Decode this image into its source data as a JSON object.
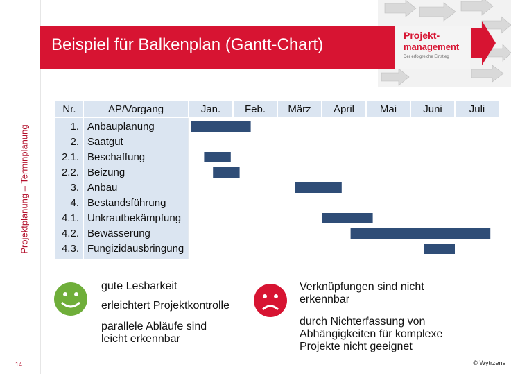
{
  "slide": {
    "title": "Beispiel für Balkenplan (Gantt-Chart)",
    "side_title": "Projektplanung – Terminplanung",
    "page_number": "14",
    "logo_line1": "Projekt-",
    "logo_line2": "management",
    "logo_line3": "Der erfolgreiche Einstieg",
    "copyright": "© Wytrzens"
  },
  "table": {
    "header_nr": "Nr.",
    "header_task": "AP/Vorgang",
    "months": [
      "Jan.",
      "Feb.",
      "März",
      "April",
      "Mai",
      "Juni",
      "Juli"
    ],
    "rows": [
      {
        "nr": "1.",
        "task": "Anbauplanung"
      },
      {
        "nr": "2.",
        "task": "Saatgut"
      },
      {
        "nr": "2.1.",
        "task": "Beschaffung"
      },
      {
        "nr": "2.2.",
        "task": "Beizung"
      },
      {
        "nr": "3.",
        "task": "Anbau"
      },
      {
        "nr": "4.",
        "task": "Bestandsführung"
      },
      {
        "nr": "4.1.",
        "task": "Unkrautbekämpfung"
      },
      {
        "nr": "4.2.",
        "task": "Bewässerung"
      },
      {
        "nr": "4.3.",
        "task": "Fungizidausbringung"
      }
    ]
  },
  "chart_data": {
    "type": "gantt",
    "time_unit": "month",
    "months": [
      "Jan.",
      "Feb.",
      "März",
      "April",
      "Mai",
      "Juni",
      "Juli"
    ],
    "bars": [
      {
        "row": 0,
        "start": 0.05,
        "end": 1.4
      },
      {
        "row": 2,
        "start": 0.35,
        "end": 0.95
      },
      {
        "row": 3,
        "start": 0.55,
        "end": 1.15
      },
      {
        "row": 4,
        "start": 2.4,
        "end": 3.45
      },
      {
        "row": 6,
        "start": 3.0,
        "end": 4.15
      },
      {
        "row": 7,
        "start": 3.65,
        "end": 6.8
      },
      {
        "row": 8,
        "start": 5.3,
        "end": 6.0
      }
    ],
    "bar_color": "#2f4d77"
  },
  "pros": {
    "items": [
      "gute Lesbarkeit",
      "erleichtert Projektkontrolle",
      "parallele Abläufe sind leicht erkennbar"
    ],
    "icon_color": "#6fae3a"
  },
  "cons": {
    "items": [
      "Verknüpfungen sind nicht erkennbar",
      "durch Nichterfassung von Abhängigkeiten für komplexe Projekte nicht geeignet"
    ],
    "icon_color": "#d71432"
  }
}
